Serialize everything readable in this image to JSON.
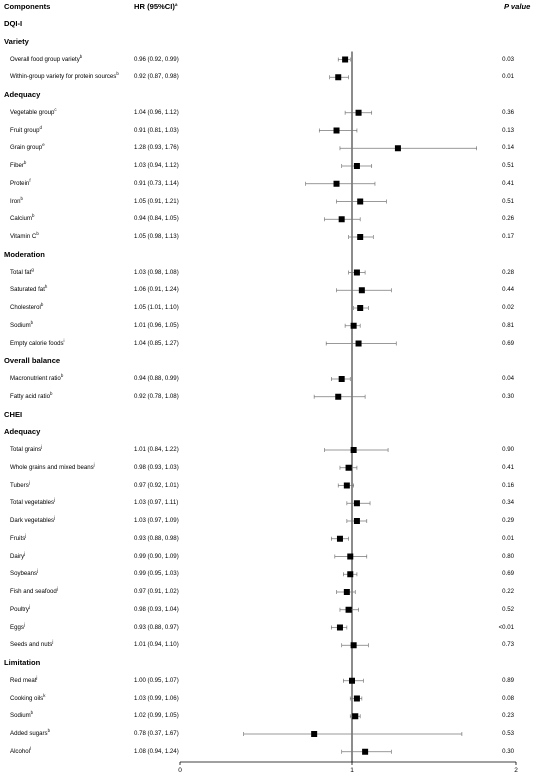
{
  "headers": {
    "components": "Components",
    "hr": "HR (95%CI)",
    "hr_sup": "a",
    "p": "P value"
  },
  "chart_data": {
    "type": "forest",
    "xlim": [
      0,
      2
    ],
    "x_ticks": [
      "0",
      "1",
      "2"
    ],
    "reference_line": 1,
    "rows": [
      {
        "kind": "group",
        "label": "DQI-I"
      },
      {
        "kind": "section",
        "label": "Variety"
      },
      {
        "kind": "item",
        "label": "Overall food group variety",
        "sup": "b",
        "hr_text": "0.96 (0.92, 0.99)",
        "hr": 0.96,
        "lo": 0.92,
        "hi": 0.99,
        "p": "0.03"
      },
      {
        "kind": "item",
        "label": "Within-group variety for protein sources",
        "sup": "b",
        "hr_text": "0.92 (0.87, 0.98)",
        "hr": 0.92,
        "lo": 0.87,
        "hi": 0.98,
        "p": "0.01"
      },
      {
        "kind": "section",
        "label": "Adequacy"
      },
      {
        "kind": "item",
        "label": "Vegetable group",
        "sup": "c",
        "hr_text": "1.04 (0.96, 1.12)",
        "hr": 1.04,
        "lo": 0.96,
        "hi": 1.12,
        "p": "0.36"
      },
      {
        "kind": "item",
        "label": "Fruit group",
        "sup": "d",
        "hr_text": "0.91 (0.81, 1.03)",
        "hr": 0.91,
        "lo": 0.81,
        "hi": 1.03,
        "p": "0.13"
      },
      {
        "kind": "item",
        "label": "Grain group",
        "sup": "e",
        "hr_text": "1.28 (0.93, 1.76)",
        "hr": 1.28,
        "lo": 0.93,
        "hi": 1.76,
        "p": "0.14"
      },
      {
        "kind": "item",
        "label": "Fiber",
        "sup": "b",
        "hr_text": "1.03 (0.94, 1.12)",
        "hr": 1.03,
        "lo": 0.94,
        "hi": 1.12,
        "p": "0.51"
      },
      {
        "kind": "item",
        "label": "Protein",
        "sup": "f",
        "hr_text": "0.91 (0.73, 1.14)",
        "hr": 0.91,
        "lo": 0.73,
        "hi": 1.14,
        "p": "0.41"
      },
      {
        "kind": "item",
        "label": "Iron",
        "sup": "b",
        "hr_text": "1.05 (0.91, 1.21)",
        "hr": 1.05,
        "lo": 0.91,
        "hi": 1.21,
        "p": "0.51"
      },
      {
        "kind": "item",
        "label": "Calcium",
        "sup": "b",
        "hr_text": "0.94 (0.84, 1.05)",
        "hr": 0.94,
        "lo": 0.84,
        "hi": 1.05,
        "p": "0.26"
      },
      {
        "kind": "item",
        "label": "Vitamin C",
        "sup": "b",
        "hr_text": "1.05 (0.98, 1.13)",
        "hr": 1.05,
        "lo": 0.98,
        "hi": 1.13,
        "p": "0.17"
      },
      {
        "kind": "section",
        "label": "Moderation"
      },
      {
        "kind": "item",
        "label": "Total fat",
        "sup": "g",
        "hr_text": "1.03 (0.98, 1.08)",
        "hr": 1.03,
        "lo": 0.98,
        "hi": 1.08,
        "p": "0.28"
      },
      {
        "kind": "item",
        "label": "Saturated fat",
        "sup": "h",
        "hr_text": "1.06 (0.91, 1.24)",
        "hr": 1.06,
        "lo": 0.91,
        "hi": 1.24,
        "p": "0.44"
      },
      {
        "kind": "item",
        "label": "Cholesterol",
        "sup": "b",
        "hr_text": "1.05 (1.01, 1.10)",
        "hr": 1.05,
        "lo": 1.01,
        "hi": 1.1,
        "p": "0.02"
      },
      {
        "kind": "item",
        "label": "Sodium",
        "sup": "b",
        "hr_text": "1.01 (0.96, 1.05)",
        "hr": 1.01,
        "lo": 0.96,
        "hi": 1.05,
        "p": "0.81"
      },
      {
        "kind": "item",
        "label": "Empty calorie foods",
        "sup": "i",
        "hr_text": "1.04 (0.85, 1.27)",
        "hr": 1.04,
        "lo": 0.85,
        "hi": 1.27,
        "p": "0.69"
      },
      {
        "kind": "section",
        "label": "Overall balance"
      },
      {
        "kind": "item",
        "label": "Macronutrient ratio",
        "sup": "b",
        "hr_text": "0.94 (0.88, 0.99)",
        "hr": 0.94,
        "lo": 0.88,
        "hi": 0.99,
        "p": "0.04"
      },
      {
        "kind": "item",
        "label": "Fatty acid ratio",
        "sup": "b",
        "hr_text": "0.92 (0.78, 1.08)",
        "hr": 0.92,
        "lo": 0.78,
        "hi": 1.08,
        "p": "0.30"
      },
      {
        "kind": "group",
        "label": "CHEI"
      },
      {
        "kind": "section",
        "label": "Adequacy"
      },
      {
        "kind": "item",
        "label": "Total grains",
        "sup": "j",
        "hr_text": "1.01 (0.84, 1.22)",
        "hr": 1.01,
        "lo": 0.84,
        "hi": 1.22,
        "p": "0.90"
      },
      {
        "kind": "item",
        "label": "Whole grains and mixed beans",
        "sup": "j",
        "hr_text": "0.98 (0.93, 1.03)",
        "hr": 0.98,
        "lo": 0.93,
        "hi": 1.03,
        "p": "0.41"
      },
      {
        "kind": "item",
        "label": "Tubers",
        "sup": "j",
        "hr_text": "0.97 (0.92, 1.01)",
        "hr": 0.97,
        "lo": 0.92,
        "hi": 1.01,
        "p": "0.16"
      },
      {
        "kind": "item",
        "label": "Total vegetables",
        "sup": "j",
        "hr_text": "1.03 (0.97, 1.11)",
        "hr": 1.03,
        "lo": 0.97,
        "hi": 1.11,
        "p": "0.34"
      },
      {
        "kind": "item",
        "label": "Dark vegetables",
        "sup": "j",
        "hr_text": "1.03 (0.97, 1.09)",
        "hr": 1.03,
        "lo": 0.97,
        "hi": 1.09,
        "p": "0.29"
      },
      {
        "kind": "item",
        "label": "Fruits",
        "sup": "j",
        "hr_text": "0.93 (0.88, 0.98)",
        "hr": 0.93,
        "lo": 0.88,
        "hi": 0.98,
        "p": "0.01"
      },
      {
        "kind": "item",
        "label": "Dairy",
        "sup": "j",
        "hr_text": "0.99 (0.90, 1.09)",
        "hr": 0.99,
        "lo": 0.9,
        "hi": 1.09,
        "p": "0.80"
      },
      {
        "kind": "item",
        "label": "Soybeans",
        "sup": "j",
        "hr_text": "0.99 (0.95, 1.03)",
        "hr": 0.99,
        "lo": 0.95,
        "hi": 1.03,
        "p": "0.69"
      },
      {
        "kind": "item",
        "label": "Fish and seafood",
        "sup": "j",
        "hr_text": "0.97 (0.91, 1.02)",
        "hr": 0.97,
        "lo": 0.91,
        "hi": 1.02,
        "p": "0.22"
      },
      {
        "kind": "item",
        "label": "Poultry",
        "sup": "j",
        "hr_text": "0.98 (0.93, 1.04)",
        "hr": 0.98,
        "lo": 0.93,
        "hi": 1.04,
        "p": "0.52"
      },
      {
        "kind": "item",
        "label": "Eggs",
        "sup": "j",
        "hr_text": "0.93 (0.88, 0.97)",
        "hr": 0.93,
        "lo": 0.88,
        "hi": 0.97,
        "p": "<0.01"
      },
      {
        "kind": "item",
        "label": "Seeds and nuts",
        "sup": "j",
        "hr_text": "1.01 (0.94, 1.10)",
        "hr": 1.01,
        "lo": 0.94,
        "hi": 1.1,
        "p": "0.73"
      },
      {
        "kind": "section",
        "label": "Limitation"
      },
      {
        "kind": "item",
        "label": "Red meat",
        "sup": "j",
        "hr_text": "1.00 (0.95, 1.07)",
        "hr": 1.0,
        "lo": 0.95,
        "hi": 1.07,
        "p": "0.89"
      },
      {
        "kind": "item",
        "label": "Cooking oils",
        "sup": "k",
        "hr_text": "1.03 (0.99, 1.06)",
        "hr": 1.03,
        "lo": 0.99,
        "hi": 1.06,
        "p": "0.08"
      },
      {
        "kind": "item",
        "label": "Sodium",
        "sup": "b",
        "hr_text": "1.02 (0.99, 1.05)",
        "hr": 1.02,
        "lo": 0.99,
        "hi": 1.05,
        "p": "0.23"
      },
      {
        "kind": "item",
        "label": "Added sugars",
        "sup": "b",
        "hr_text": "0.78 (0.37, 1.67)",
        "hr": 0.78,
        "lo": 0.37,
        "hi": 1.67,
        "p": "0.53"
      },
      {
        "kind": "item",
        "label": "Alcohol",
        "sup": "l",
        "hr_text": "1.08 (0.94, 1.24)",
        "hr": 1.08,
        "lo": 0.94,
        "hi": 1.24,
        "p": "0.30"
      }
    ]
  }
}
